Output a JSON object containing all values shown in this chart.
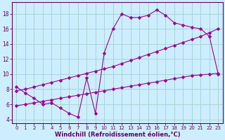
{
  "line1_x": [
    0,
    1,
    2,
    3,
    4,
    5,
    6,
    7,
    8,
    9,
    10,
    11,
    12,
    13,
    14,
    15,
    16,
    17,
    18,
    19,
    20,
    21,
    22,
    23
  ],
  "line1_y": [
    8.3,
    7.5,
    6.8,
    6.0,
    6.2,
    5.5,
    4.8,
    4.3,
    9.5,
    4.8,
    12.8,
    16.0,
    18.0,
    17.5,
    17.5,
    17.8,
    18.5,
    17.8,
    16.8,
    16.5,
    16.2,
    16.0,
    15.0,
    10.0
  ],
  "line2_x": [
    0,
    1,
    2,
    3,
    4,
    5,
    6,
    7,
    8,
    9,
    10,
    11,
    12,
    13,
    14,
    15,
    16,
    17,
    18,
    19,
    20,
    21,
    22,
    23
  ],
  "line2_y": [
    7.8,
    8.0,
    8.3,
    8.6,
    8.9,
    9.2,
    9.5,
    9.8,
    10.1,
    10.4,
    10.7,
    11.0,
    11.4,
    11.8,
    12.2,
    12.6,
    13.0,
    13.4,
    13.8,
    14.2,
    14.6,
    15.0,
    15.5,
    16.0
  ],
  "line3_x": [
    0,
    1,
    2,
    3,
    4,
    5,
    6,
    7,
    8,
    9,
    10,
    11,
    12,
    13,
    14,
    15,
    16,
    17,
    18,
    19,
    20,
    21,
    22,
    23
  ],
  "line3_y": [
    5.8,
    6.0,
    6.2,
    6.4,
    6.6,
    6.8,
    7.0,
    7.2,
    7.4,
    7.6,
    7.8,
    8.0,
    8.2,
    8.4,
    8.6,
    8.8,
    9.0,
    9.2,
    9.4,
    9.6,
    9.8,
    9.9,
    10.0,
    10.1
  ],
  "line_color": "#990099",
  "bg_color": "#cceeff",
  "grid_color": "#aad4d4",
  "axis_color": "#660066",
  "xlabel": "Windchill (Refroidissement éolien,°C)",
  "xlim": [
    -0.5,
    23.5
  ],
  "ylim": [
    3.5,
    19.5
  ],
  "xticks": [
    0,
    1,
    2,
    3,
    4,
    5,
    6,
    7,
    8,
    9,
    10,
    11,
    12,
    13,
    14,
    15,
    16,
    17,
    18,
    19,
    20,
    21,
    22,
    23
  ],
  "yticks": [
    4,
    6,
    8,
    10,
    12,
    14,
    16,
    18
  ],
  "markersize": 2.5
}
